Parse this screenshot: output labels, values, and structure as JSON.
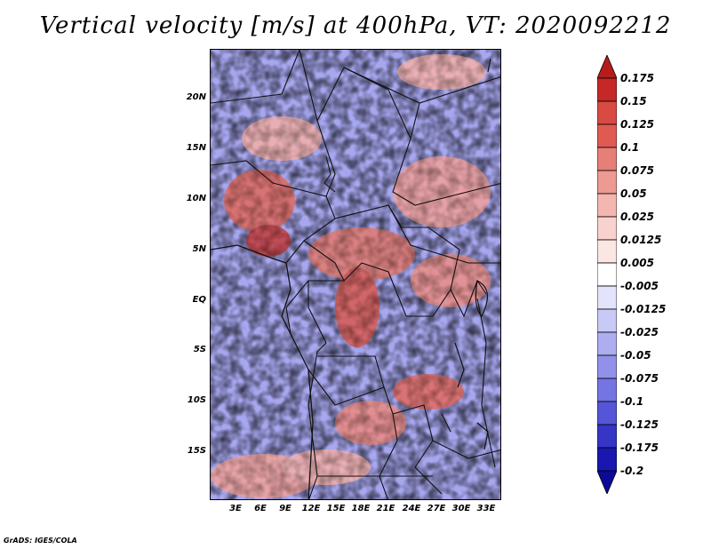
{
  "title": "Vertical velocity [m/s] at 400hPa, VT: 2020092212",
  "map": {
    "lat_labels": [
      "20N",
      "15N",
      "10N",
      "5N",
      "EQ",
      "5S",
      "10S",
      "15S"
    ],
    "lon_labels": [
      "3E",
      "6E",
      "9E",
      "12E",
      "15E",
      "18E",
      "21E",
      "24E",
      "27E",
      "30E",
      "33E"
    ],
    "extent": {
      "lon": [
        0.5,
        34.5
      ],
      "lat": [
        -19.5,
        25
      ]
    }
  },
  "colorbar": {
    "labels": [
      "0.175",
      "0.15",
      "0.125",
      "0.1",
      "0.075",
      "0.05",
      "0.025",
      "0.0125",
      "0.005",
      "-0.005",
      "-0.0125",
      "-0.025",
      "-0.05",
      "-0.075",
      "-0.1",
      "-0.125",
      "-0.175",
      "-0.2"
    ],
    "colors": [
      "#b71c1c",
      "#c62828",
      "#d84a44",
      "#e05a52",
      "#e57f78",
      "#ec9a92",
      "#f3b7b0",
      "#f8d2ce",
      "#fbe6e3",
      "#ffffff",
      "#e3e3fb",
      "#c9c9f6",
      "#adadf0",
      "#9191ea",
      "#7474e2",
      "#5555d8",
      "#3535c6",
      "#1818b0",
      "#0a0a96"
    ]
  },
  "credit": "GrADS: IGES/COLA"
}
